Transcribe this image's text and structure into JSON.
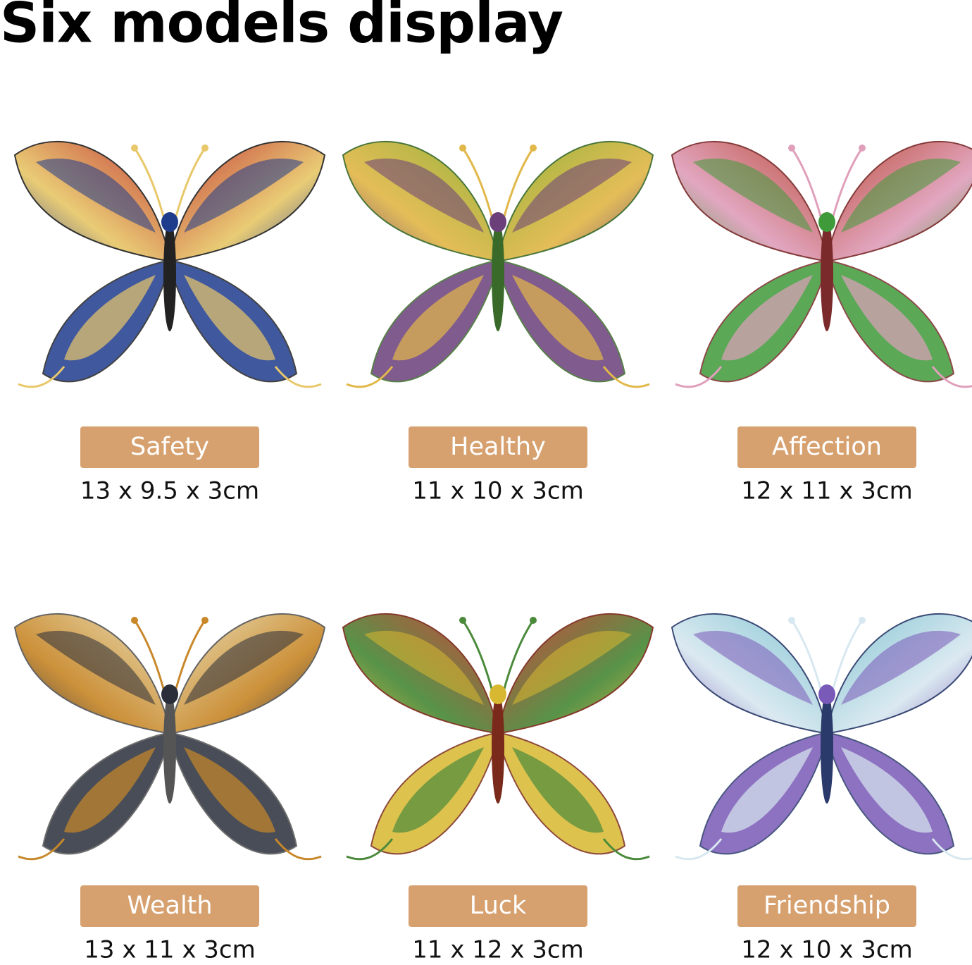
{
  "title": "Six models display",
  "models": [
    {
      "name": "Safety",
      "size": "13 x 9.5 x 3cm"
    },
    {
      "name": "Healthy",
      "size": "11 x 10 x 3cm"
    },
    {
      "name": "Affection",
      "size": "12 x 11 x 3cm"
    },
    {
      "name": "Wealth",
      "size": "13 x 11 x 3cm"
    },
    {
      "name": "Luck",
      "size": "11 x 12 x 3cm"
    },
    {
      "name": "Friendship",
      "size": "12 x 10 x 3cm"
    }
  ]
}
